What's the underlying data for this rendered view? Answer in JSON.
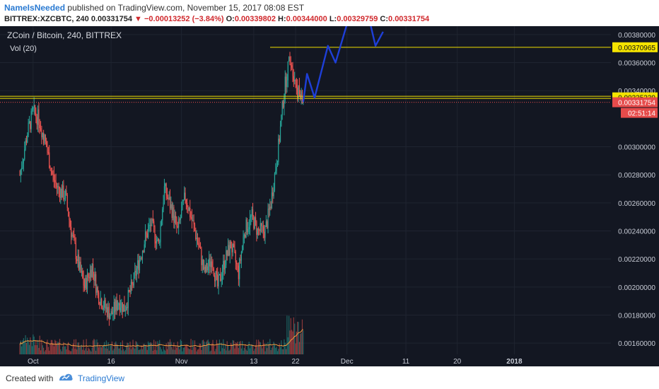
{
  "header": {
    "author": "NameIsNeeded",
    "published_text": "published on TradingView.com, November 15, 2017 08:08 EST",
    "symbol": "BITTREX:XZCBTC, 240",
    "last": "0.00331754",
    "change_arrow": "▼",
    "change": "−0.00013252 (−3.84%)",
    "o_label": "O:",
    "o_value": "0.00339802",
    "h_label": "H:",
    "h_value": "0.00344000",
    "l_label": "L:",
    "l_value": "0.00329759",
    "c_label": "C:",
    "c_value": "0.00331754"
  },
  "legend": {
    "title": "ZCoin / Bitcoin, 240, BITTREX",
    "indicator": "Vol (20)"
  },
  "footer": {
    "created_with": "Created with",
    "brand": "TradingView"
  },
  "colors": {
    "background": "#131722",
    "grid": "#1f2430",
    "up": "#26a69a",
    "down": "#ef5350",
    "level_line": "#f0e000",
    "projection": "#1e3fd8",
    "vol_ma": "#f39c40",
    "price_tag": "#e64b4b"
  },
  "chart_data": {
    "type": "candlestick",
    "pair": "XZC/BTC",
    "timeframe": "240",
    "y_axis": {
      "ticks": [
        "0.00380000",
        "0.00360000",
        "0.00340000",
        "0.00300000",
        "0.00280000",
        "0.00260000",
        "0.00240000",
        "0.00220000",
        "0.00200000",
        "0.00180000",
        "0.00160000"
      ],
      "range": [
        0.00152,
        0.00386
      ]
    },
    "x_axis": {
      "ticks": [
        "Oct",
        "16",
        "Nov",
        "13",
        "22",
        "Dec",
        "11",
        "20",
        "2018"
      ]
    },
    "levels": [
      {
        "value": 0.00370965,
        "label": "0.00370965"
      },
      {
        "value": 0.00335239,
        "label": "0.00335239"
      }
    ],
    "current_price": {
      "value": 0.00331754,
      "label": "0.00331754",
      "countdown": "02:51:14"
    },
    "price_series": {
      "x_days": [
        0,
        4,
        7,
        10,
        14,
        17,
        20,
        24,
        27,
        31,
        34,
        38,
        41,
        45,
        48,
        52,
        55,
        59,
        62,
        66,
        69,
        73,
        76,
        80,
        83,
        87,
        90,
        94,
        97,
        101,
        104,
        108,
        111,
        115,
        118,
        122,
        125,
        129,
        132,
        136,
        139,
        142,
        146,
        149
      ],
      "close": [
        0.0028,
        0.0031,
        0.00325,
        0.0032,
        0.003,
        0.0028,
        0.0027,
        0.00265,
        0.0024,
        0.00215,
        0.002,
        0.00215,
        0.00195,
        0.00185,
        0.0018,
        0.0019,
        0.00185,
        0.002,
        0.00215,
        0.00235,
        0.00245,
        0.0023,
        0.0027,
        0.00255,
        0.0024,
        0.00265,
        0.0025,
        0.0023,
        0.0021,
        0.0022,
        0.002,
        0.0022,
        0.0023,
        0.0021,
        0.0024,
        0.0025,
        0.0024,
        0.0024,
        0.0026,
        0.003,
        0.0034,
        0.00365,
        0.0034,
        0.00332
      ]
    },
    "projection_path_days": [
      {
        "x": 149,
        "y": 0.00332
      },
      {
        "x": 151,
        "y": 0.00352
      },
      {
        "x": 155,
        "y": 0.00335
      },
      {
        "x": 162,
        "y": 0.00372
      },
      {
        "x": 166,
        "y": 0.0036
      },
      {
        "x": 173,
        "y": 0.00392
      },
      {
        "x": 183,
        "y": 0.00395
      },
      {
        "x": 187,
        "y": 0.00372
      },
      {
        "x": 191,
        "y": 0.00382
      }
    ]
  }
}
